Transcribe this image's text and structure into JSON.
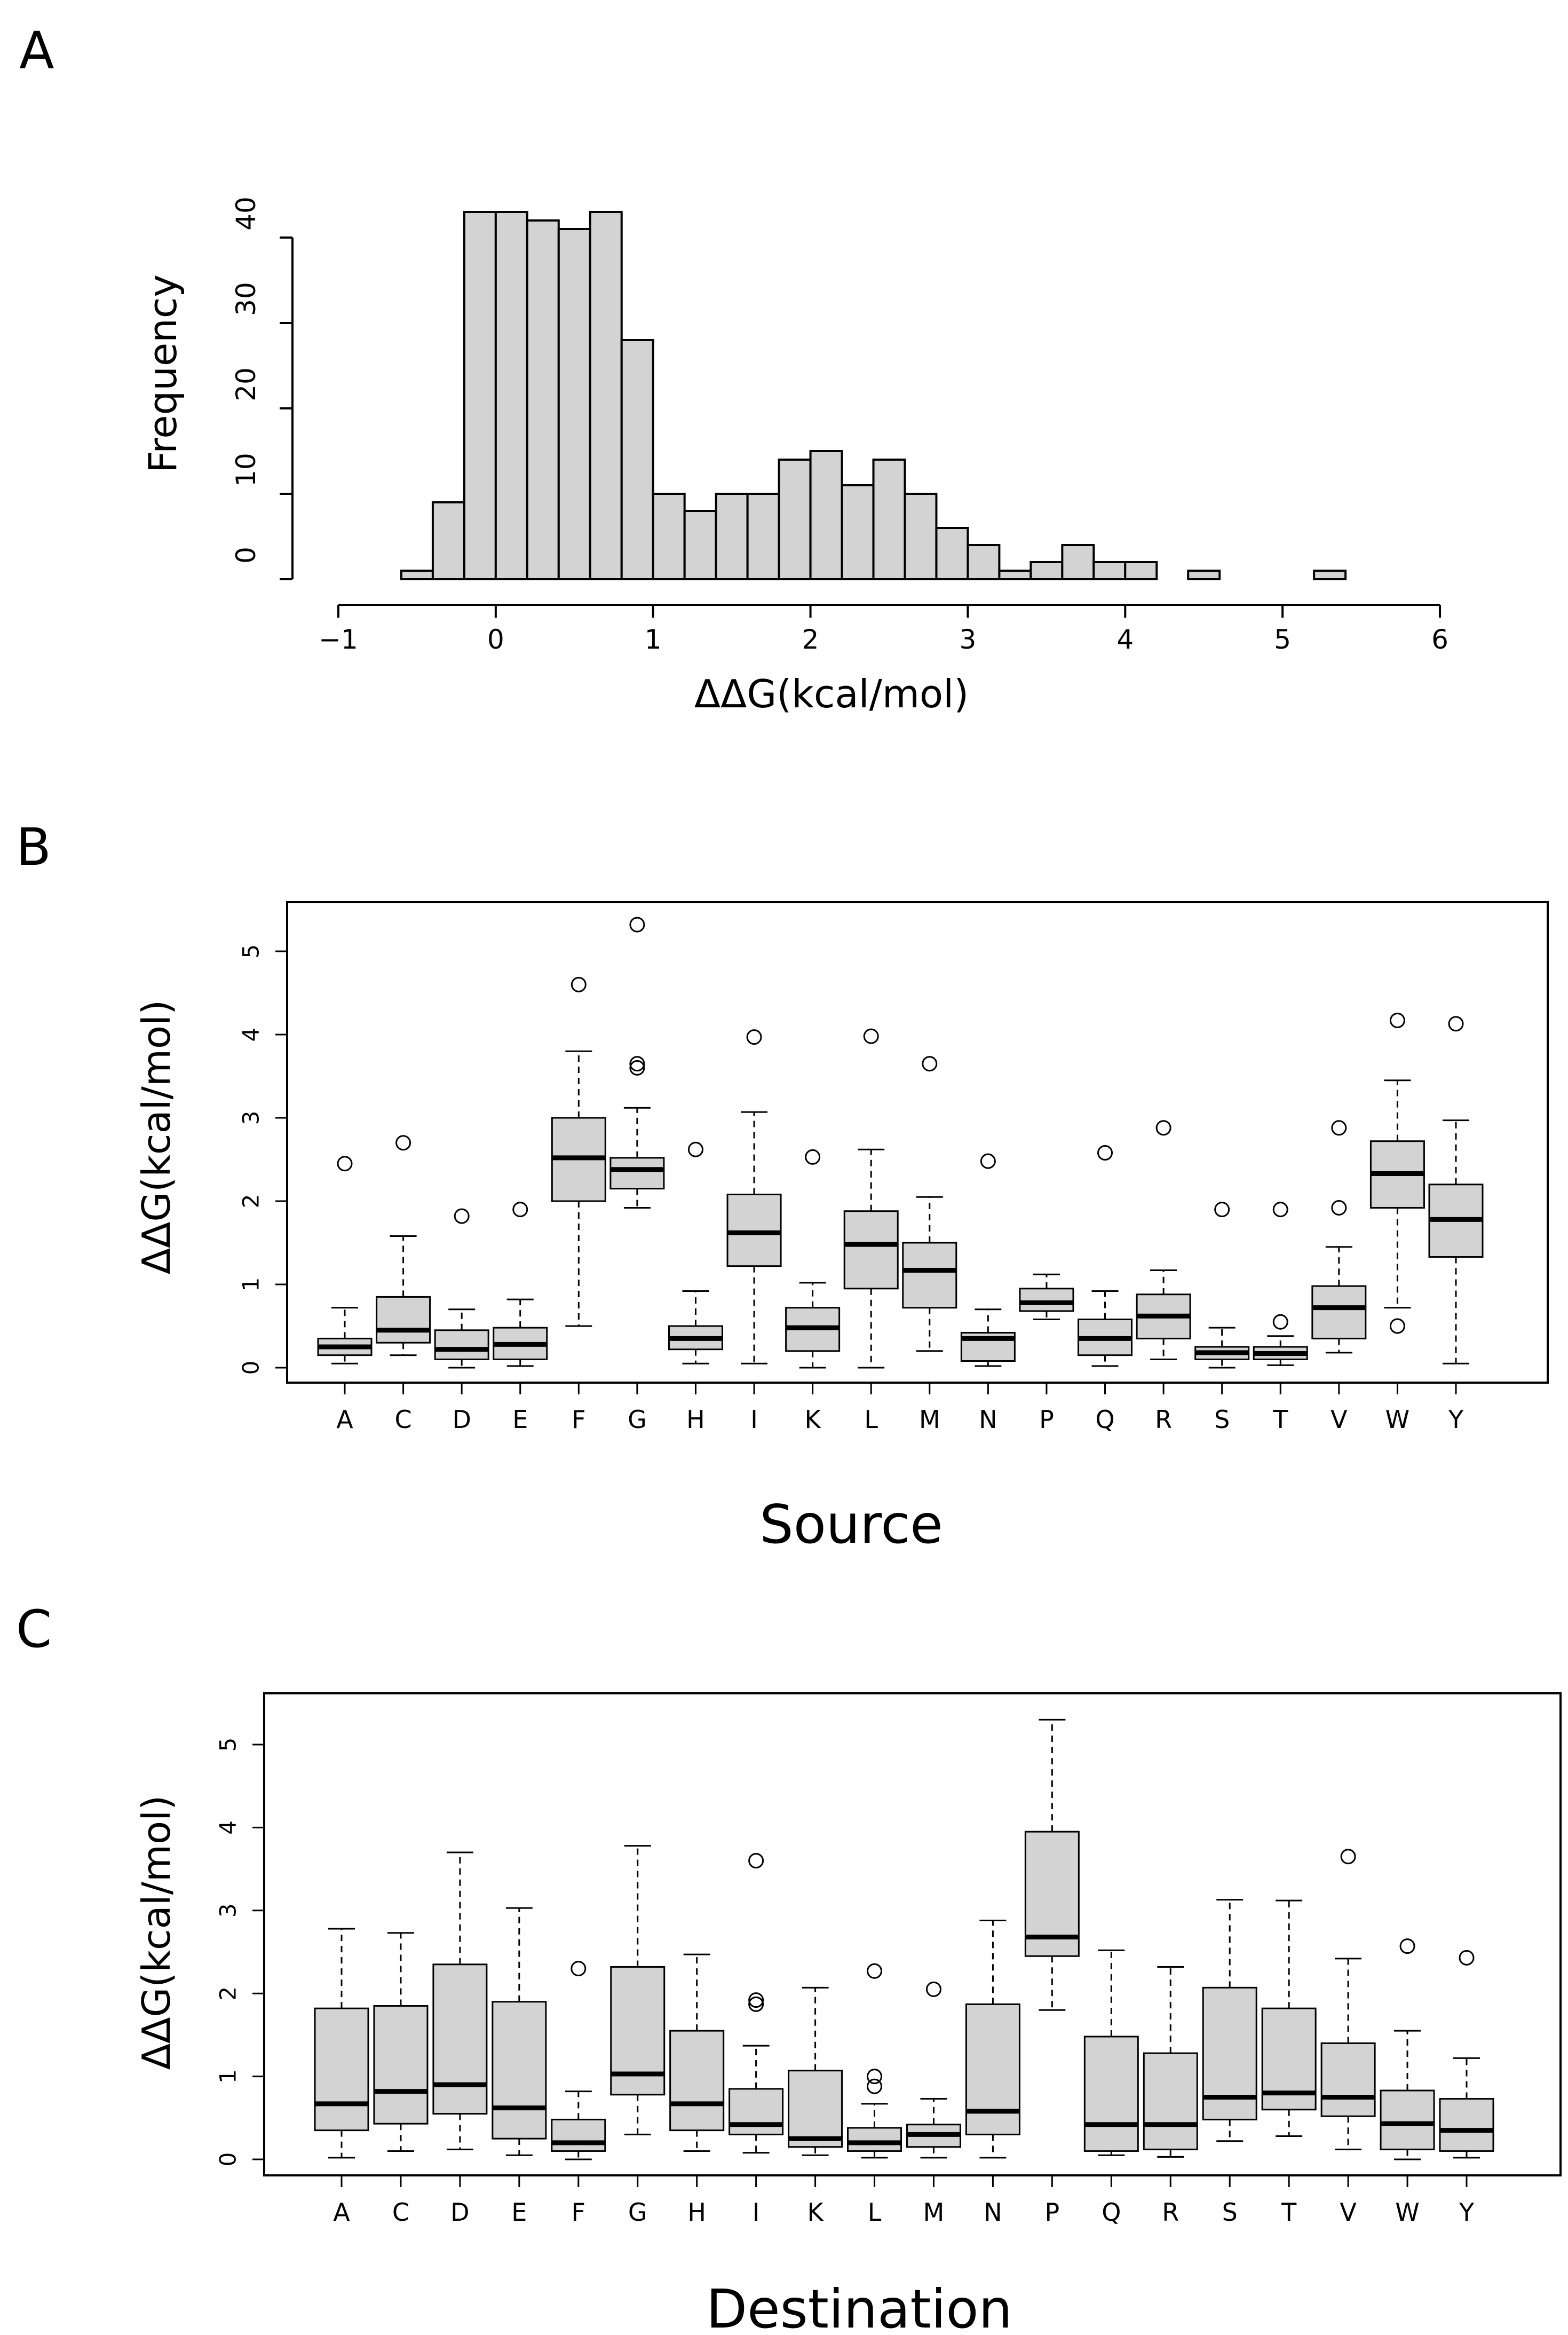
{
  "panels": {
    "a": {
      "letter": "A"
    },
    "b": {
      "letter": "B"
    },
    "c": {
      "letter": "C"
    }
  },
  "chart_data": [
    {
      "type": "bar",
      "subtype": "histogram",
      "xlabel": "ΔΔG(kcal/mol)",
      "ylabel": "Frequency",
      "xlim": [
        -1,
        6
      ],
      "ylim": [
        0,
        40
      ],
      "x_ticks": [
        -1,
        0,
        1,
        2,
        3,
        4,
        5,
        6
      ],
      "y_ticks": [
        0,
        10,
        20,
        30,
        40
      ],
      "bin_width": 0.2,
      "bin_starts": [
        -0.6,
        -0.4,
        -0.2,
        0.0,
        0.2,
        0.4,
        0.6,
        0.8,
        1.0,
        1.2,
        1.4,
        1.6,
        1.8,
        2.0,
        2.2,
        2.4,
        2.6,
        2.8,
        3.0,
        3.2,
        3.4,
        3.6,
        3.8,
        4.0,
        4.2,
        4.4,
        4.6,
        4.8,
        5.0,
        5.2
      ],
      "values": [
        1,
        9,
        43,
        43,
        42,
        41,
        43,
        28,
        10,
        8,
        10,
        10,
        14,
        15,
        11,
        14,
        10,
        6,
        4,
        1,
        2,
        4,
        2,
        2,
        0,
        1,
        0,
        0,
        0,
        1
      ],
      "grid": false
    },
    {
      "type": "boxplot",
      "xlabel": "Source",
      "ylabel": "ΔΔG(kcal/mol)",
      "ylim": [
        0,
        5
      ],
      "y_ticks": [
        0,
        1,
        2,
        3,
        4,
        5
      ],
      "categories": [
        "A",
        "C",
        "D",
        "E",
        "F",
        "G",
        "H",
        "I",
        "K",
        "L",
        "M",
        "N",
        "P",
        "Q",
        "R",
        "S",
        "T",
        "V",
        "W",
        "Y"
      ],
      "boxes": [
        {
          "min": 0.05,
          "q1": 0.15,
          "median": 0.25,
          "q3": 0.35,
          "max": 0.72,
          "outliers": [
            2.45
          ]
        },
        {
          "min": 0.15,
          "q1": 0.3,
          "median": 0.45,
          "q3": 0.85,
          "max": 1.58,
          "outliers": [
            2.7
          ]
        },
        {
          "min": 0.0,
          "q1": 0.1,
          "median": 0.22,
          "q3": 0.45,
          "max": 0.7,
          "outliers": [
            1.82
          ]
        },
        {
          "min": 0.02,
          "q1": 0.1,
          "median": 0.28,
          "q3": 0.48,
          "max": 0.82,
          "outliers": [
            1.9
          ]
        },
        {
          "min": 0.5,
          "q1": 2.0,
          "median": 2.52,
          "q3": 3.0,
          "max": 3.8,
          "outliers": [
            4.6
          ]
        },
        {
          "min": 1.92,
          "q1": 2.15,
          "median": 2.38,
          "q3": 2.52,
          "max": 3.12,
          "outliers": [
            3.6,
            3.65,
            5.32
          ]
        },
        {
          "min": 0.05,
          "q1": 0.22,
          "median": 0.35,
          "q3": 0.5,
          "max": 0.92,
          "outliers": [
            2.62
          ]
        },
        {
          "min": 0.05,
          "q1": 1.22,
          "median": 1.62,
          "q3": 2.08,
          "max": 3.07,
          "outliers": [
            3.97
          ]
        },
        {
          "min": 0.0,
          "q1": 0.2,
          "median": 0.48,
          "q3": 0.72,
          "max": 1.02,
          "outliers": [
            2.53
          ]
        },
        {
          "min": 0.0,
          "q1": 0.95,
          "median": 1.48,
          "q3": 1.88,
          "max": 2.62,
          "outliers": [
            3.98
          ]
        },
        {
          "min": 0.2,
          "q1": 0.72,
          "median": 1.17,
          "q3": 1.5,
          "max": 2.05,
          "outliers": [
            3.65
          ]
        },
        {
          "min": 0.02,
          "q1": 0.08,
          "median": 0.35,
          "q3": 0.42,
          "max": 0.7,
          "outliers": [
            2.48
          ]
        },
        {
          "min": 0.58,
          "q1": 0.68,
          "median": 0.78,
          "q3": 0.95,
          "max": 1.12,
          "outliers": []
        },
        {
          "min": 0.02,
          "q1": 0.15,
          "median": 0.35,
          "q3": 0.58,
          "max": 0.92,
          "outliers": [
            2.58
          ]
        },
        {
          "min": 0.1,
          "q1": 0.35,
          "median": 0.62,
          "q3": 0.88,
          "max": 1.17,
          "outliers": [
            2.88
          ]
        },
        {
          "min": 0.0,
          "q1": 0.1,
          "median": 0.18,
          "q3": 0.25,
          "max": 0.48,
          "outliers": [
            1.9
          ]
        },
        {
          "min": 0.03,
          "q1": 0.1,
          "median": 0.17,
          "q3": 0.25,
          "max": 0.38,
          "outliers": [
            0.55,
            1.9
          ]
        },
        {
          "min": 0.18,
          "q1": 0.35,
          "median": 0.72,
          "q3": 0.98,
          "max": 1.45,
          "outliers": [
            1.92,
            2.88
          ]
        },
        {
          "min": 0.72,
          "q1": 1.92,
          "median": 2.33,
          "q3": 2.72,
          "max": 3.45,
          "outliers": [
            0.5,
            4.17
          ]
        },
        {
          "min": 0.05,
          "q1": 1.33,
          "median": 1.78,
          "q3": 2.2,
          "max": 2.97,
          "outliers": [
            4.13
          ]
        }
      ],
      "grid": false
    },
    {
      "type": "boxplot",
      "xlabel": "Destination",
      "ylabel": "ΔΔG(kcal/mol)",
      "ylim": [
        0,
        5
      ],
      "y_ticks": [
        0,
        1,
        2,
        3,
        4,
        5
      ],
      "categories": [
        "A",
        "C",
        "D",
        "E",
        "F",
        "G",
        "H",
        "I",
        "K",
        "L",
        "M",
        "N",
        "P",
        "Q",
        "R",
        "S",
        "T",
        "V",
        "W",
        "Y"
      ],
      "boxes": [
        {
          "min": 0.02,
          "q1": 0.35,
          "median": 0.67,
          "q3": 1.82,
          "max": 2.78,
          "outliers": []
        },
        {
          "min": 0.1,
          "q1": 0.43,
          "median": 0.82,
          "q3": 1.85,
          "max": 2.73,
          "outliers": []
        },
        {
          "min": 0.12,
          "q1": 0.55,
          "median": 0.9,
          "q3": 2.35,
          "max": 3.7,
          "outliers": []
        },
        {
          "min": 0.05,
          "q1": 0.25,
          "median": 0.62,
          "q3": 1.9,
          "max": 3.03,
          "outliers": []
        },
        {
          "min": 0.0,
          "q1": 0.1,
          "median": 0.2,
          "q3": 0.48,
          "max": 0.82,
          "outliers": [
            2.3
          ]
        },
        {
          "min": 0.3,
          "q1": 0.78,
          "median": 1.03,
          "q3": 2.32,
          "max": 3.78,
          "outliers": []
        },
        {
          "min": 0.1,
          "q1": 0.35,
          "median": 0.67,
          "q3": 1.55,
          "max": 2.47,
          "outliers": []
        },
        {
          "min": 0.08,
          "q1": 0.3,
          "median": 0.42,
          "q3": 0.85,
          "max": 1.37,
          "outliers": [
            1.87,
            1.92,
            3.6
          ]
        },
        {
          "min": 0.05,
          "q1": 0.15,
          "median": 0.25,
          "q3": 1.07,
          "max": 2.07,
          "outliers": []
        },
        {
          "min": 0.02,
          "q1": 0.1,
          "median": 0.2,
          "q3": 0.38,
          "max": 0.67,
          "outliers": [
            0.88,
            1.0,
            2.27
          ]
        },
        {
          "min": 0.02,
          "q1": 0.15,
          "median": 0.3,
          "q3": 0.42,
          "max": 0.73,
          "outliers": [
            2.05
          ]
        },
        {
          "min": 0.02,
          "q1": 0.3,
          "median": 0.58,
          "q3": 1.87,
          "max": 2.88,
          "outliers": []
        },
        {
          "min": 1.8,
          "q1": 2.45,
          "median": 2.68,
          "q3": 3.95,
          "max": 5.3,
          "outliers": []
        },
        {
          "min": 0.05,
          "q1": 0.1,
          "median": 0.42,
          "q3": 1.48,
          "max": 2.52,
          "outliers": []
        },
        {
          "min": 0.03,
          "q1": 0.12,
          "median": 0.42,
          "q3": 1.28,
          "max": 2.32,
          "outliers": []
        },
        {
          "min": 0.22,
          "q1": 0.48,
          "median": 0.75,
          "q3": 2.07,
          "max": 3.13,
          "outliers": []
        },
        {
          "min": 0.28,
          "q1": 0.6,
          "median": 0.8,
          "q3": 1.82,
          "max": 3.12,
          "outliers": []
        },
        {
          "min": 0.12,
          "q1": 0.52,
          "median": 0.75,
          "q3": 1.4,
          "max": 2.42,
          "outliers": [
            3.65
          ]
        },
        {
          "min": 0.0,
          "q1": 0.12,
          "median": 0.43,
          "q3": 0.83,
          "max": 1.55,
          "outliers": [
            2.57
          ]
        },
        {
          "min": 0.02,
          "q1": 0.1,
          "median": 0.35,
          "q3": 0.73,
          "max": 1.22,
          "outliers": [
            2.43
          ]
        }
      ],
      "grid": false
    }
  ]
}
